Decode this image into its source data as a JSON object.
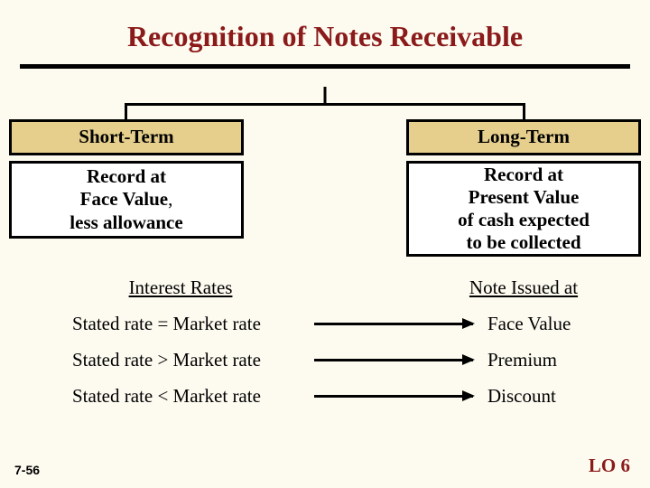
{
  "title": "Recognition of Notes Receivable",
  "colors": {
    "background": "#fdfbf0",
    "title": "#8b1a1a",
    "box_header_bg": "#e6cf8c",
    "box_body_bg": "#ffffff",
    "line": "#000000"
  },
  "diagram": {
    "left_header": "Short-Term",
    "right_header": "Long-Term",
    "left_body_line1": "Record at",
    "left_body_line2a": "Face Value",
    "left_body_line2b": ",",
    "left_body_line3": "less allowance",
    "right_body_line1": "Record at",
    "right_body_line2": "Present Value",
    "right_body_line3": "of cash expected",
    "right_body_line4": "to be collected"
  },
  "rates": {
    "header_left": "Interest Rates",
    "header_right": "Note Issued at",
    "rows": [
      {
        "left": "Stated rate = Market rate",
        "right": "Face Value"
      },
      {
        "left": "Stated rate > Market rate",
        "right": "Premium"
      },
      {
        "left": "Stated rate < Market rate",
        "right": "Discount"
      }
    ]
  },
  "footer": {
    "left": "7-56",
    "right": "LO 6"
  }
}
